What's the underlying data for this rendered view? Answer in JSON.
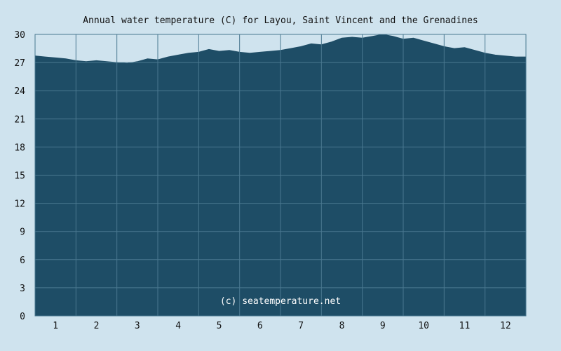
{
  "chart_data": {
    "type": "area",
    "title": "Annual water temperature (C) for Layou, Saint Vincent and the Grenadines",
    "xlabel": "",
    "ylabel": "",
    "ylim": [
      0,
      30
    ],
    "y_ticks": [
      "0",
      "3",
      "6",
      "9",
      "12",
      "15",
      "18",
      "21",
      "24",
      "27",
      "30"
    ],
    "x_ticks": [
      "1",
      "2",
      "3",
      "4",
      "5",
      "6",
      "7",
      "8",
      "9",
      "10",
      "11",
      "12"
    ],
    "xlim": [
      1,
      13
    ],
    "grid": true,
    "x": [
      1.0,
      1.25,
      1.5,
      1.75,
      2.0,
      2.25,
      2.5,
      2.75,
      3.0,
      3.25,
      3.5,
      3.75,
      4.0,
      4.25,
      4.5,
      4.75,
      5.0,
      5.25,
      5.5,
      5.75,
      6.0,
      6.25,
      6.5,
      6.75,
      7.0,
      7.25,
      7.5,
      7.75,
      8.0,
      8.25,
      8.5,
      8.75,
      9.0,
      9.25,
      9.5,
      9.75,
      10.0,
      10.25,
      10.5,
      10.75,
      11.0,
      11.25,
      11.5,
      11.75,
      12.0,
      12.25,
      12.5,
      12.75,
      13.0
    ],
    "values": [
      27.7,
      27.6,
      27.5,
      27.4,
      27.2,
      27.1,
      27.2,
      27.1,
      27.0,
      26.9,
      27.1,
      27.4,
      27.3,
      27.6,
      27.8,
      28.0,
      28.1,
      28.4,
      28.2,
      28.3,
      28.1,
      28.0,
      28.1,
      28.2,
      28.3,
      28.5,
      28.7,
      29.0,
      28.9,
      29.2,
      29.6,
      29.7,
      29.6,
      29.8,
      30.0,
      29.8,
      29.5,
      29.6,
      29.3,
      29.0,
      28.7,
      28.5,
      28.6,
      28.3,
      28.0,
      27.8,
      27.7,
      27.6,
      27.6
    ],
    "series_color": "#1e4d66",
    "grid_color": "#4a7890",
    "background_color": "#cfe3ee",
    "watermark": "(c) seatemperature.net"
  }
}
